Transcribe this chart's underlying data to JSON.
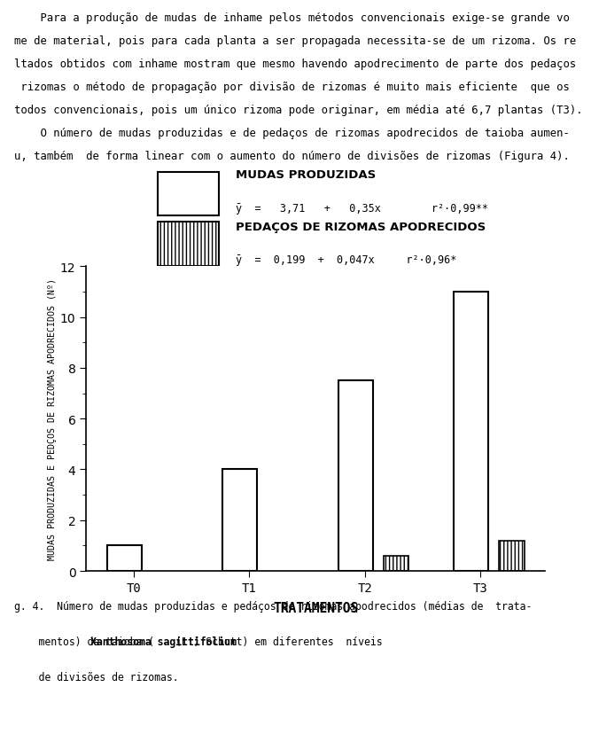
{
  "treatments": [
    "T0",
    "T1",
    "T2",
    "T3"
  ],
  "mudas_values": [
    1.0,
    4.0,
    7.5,
    11.0
  ],
  "rizomas_values": [
    0.0,
    0.0,
    0.6,
    1.2
  ],
  "ylim": [
    0,
    12
  ],
  "yticks": [
    0,
    2,
    4,
    6,
    8,
    10,
    12
  ],
  "ylabel": "MUDAS PRODUZIDAS E PEDÇOS DE RIZOMAS APODRECIDOS (Nº)",
  "xlabel": "TRATAMENTOS",
  "background_color": "#ffffff",
  "text_lines": [
    "    Para a produção de mudas de inhame pelos métodos convencionais exige-se grande vo",
    "me de material, pois para cada planta a ser propagada necessita-se de um rizoma. Os re",
    "ltados obtidos com inhame mostram que mesmo havendo apodrecimento de parte dos pedaços",
    " rizomas o método de propagação por divisão de rizomas é muito mais eficiente  que os",
    "todos convencionais, pois um único rizoma pode originar, em média até 6,7 plantas (T3).",
    "    O número de mudas produzidas e de pedaços de rizomas apodrecidos de taioba aumen-",
    "u, também  de forma linear com o aumento do número de divisões de rizomas (Figura 4)."
  ],
  "legend_mudas_title": "MUDAS PRODUZIDAS",
  "legend_mudas_eq": "ȳ  =   3,71   +   0,35x        r²=0,99**",
  "legend_rizomas_title": "PEDAÇOS DE RIZOMAS APODRECIDOS",
  "legend_rizomas_eq": "ȳ  =  0,199  +  0,047x     r²=0,96*",
  "caption_line1": "g. 4.  Número de mudas produzidas e pedáços de rizomas apodrecidos (médias de  trata-",
  "caption_line2_pre": "    mentos) de taioba (",
  "caption_line2_bold": "Xanthosoma sagittifolium",
  "caption_line2_post": " (L.) Schott) em diferentes  níveis",
  "caption_line3": "    de divisões de rizomas."
}
